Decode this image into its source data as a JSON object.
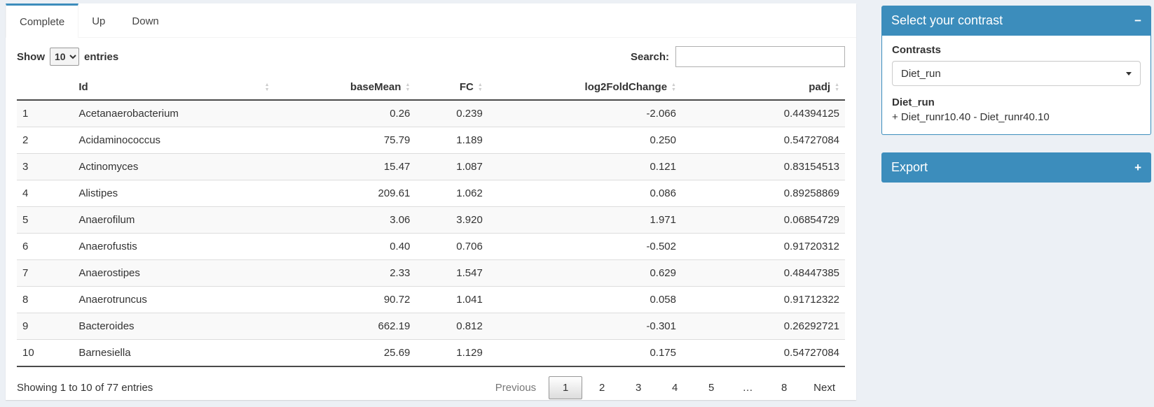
{
  "tabs": [
    {
      "label": "Complete",
      "active": true
    },
    {
      "label": "Up",
      "active": false
    },
    {
      "label": "Down",
      "active": false
    }
  ],
  "toolbar": {
    "show_label": "Show",
    "page_length": "10",
    "entries_label": "entries",
    "search_label": "Search:",
    "search_value": ""
  },
  "table": {
    "columns": [
      {
        "label": "Id"
      },
      {
        "label": "baseMean"
      },
      {
        "label": "FC"
      },
      {
        "label": "log2FoldChange"
      },
      {
        "label": "padj"
      }
    ],
    "rows": [
      {
        "index": "1",
        "id": "Acetanaerobacterium",
        "baseMean": "0.26",
        "fc": "0.239",
        "log2fc": "-2.066",
        "padj": "0.44394125"
      },
      {
        "index": "2",
        "id": "Acidaminococcus",
        "baseMean": "75.79",
        "fc": "1.189",
        "log2fc": "0.250",
        "padj": "0.54727084"
      },
      {
        "index": "3",
        "id": "Actinomyces",
        "baseMean": "15.47",
        "fc": "1.087",
        "log2fc": "0.121",
        "padj": "0.83154513"
      },
      {
        "index": "4",
        "id": "Alistipes",
        "baseMean": "209.61",
        "fc": "1.062",
        "log2fc": "0.086",
        "padj": "0.89258869"
      },
      {
        "index": "5",
        "id": "Anaerofilum",
        "baseMean": "3.06",
        "fc": "3.920",
        "log2fc": "1.971",
        "padj": "0.06854729"
      },
      {
        "index": "6",
        "id": "Anaerofustis",
        "baseMean": "0.40",
        "fc": "0.706",
        "log2fc": "-0.502",
        "padj": "0.91720312"
      },
      {
        "index": "7",
        "id": "Anaerostipes",
        "baseMean": "2.33",
        "fc": "1.547",
        "log2fc": "0.629",
        "padj": "0.48447385"
      },
      {
        "index": "8",
        "id": "Anaerotruncus",
        "baseMean": "90.72",
        "fc": "1.041",
        "log2fc": "0.058",
        "padj": "0.91712322"
      },
      {
        "index": "9",
        "id": "Bacteroides",
        "baseMean": "662.19",
        "fc": "0.812",
        "log2fc": "-0.301",
        "padj": "0.26292721"
      },
      {
        "index": "10",
        "id": "Barnesiella",
        "baseMean": "25.69",
        "fc": "1.129",
        "log2fc": "0.175",
        "padj": "0.54727084"
      }
    ],
    "info": "Showing 1 to 10 of 77 entries",
    "pagination": {
      "previous": "Previous",
      "pages": [
        "1",
        "2",
        "3",
        "4",
        "5",
        "…",
        "8"
      ],
      "current": "1",
      "next": "Next"
    }
  },
  "contrast_box": {
    "title": "Select your contrast",
    "collapse_icon": "−",
    "contrasts_label": "Contrasts",
    "selected_contrast": "Diet_run",
    "contrast_name": "Diet_run",
    "contrast_formula": "+ Diet_runr10.40 - Diet_runr40.10"
  },
  "export_box": {
    "title": "Export",
    "expand_icon": "+"
  },
  "icons": {
    "sort_up": "▲",
    "sort_down": "▼"
  },
  "colors": {
    "primary": "#3c8dbc",
    "page_background": "#ecf0f5",
    "row_stripe": "#f9f9f9"
  }
}
